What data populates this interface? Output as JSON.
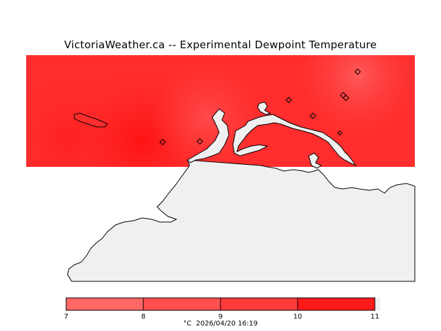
{
  "title": "VictoriaWeather.ca -- Experimental Dewpoint Temperature",
  "legend": {
    "ticks": [
      "7",
      "8",
      "9",
      "10",
      "11"
    ],
    "unit": "°C",
    "timestamp": "2026/04/20 16:19",
    "colors": [
      "#ff6666",
      "#ff5252",
      "#ff3e3e",
      "#ff2a2a",
      "#ff1010"
    ]
  },
  "map_colors": {
    "field_base": "#ff2a2a",
    "field_warm": "#ff1818",
    "field_light": "#ff5050",
    "land": "#f0f0f0",
    "coast": "#000000"
  },
  "station_count": 8
}
